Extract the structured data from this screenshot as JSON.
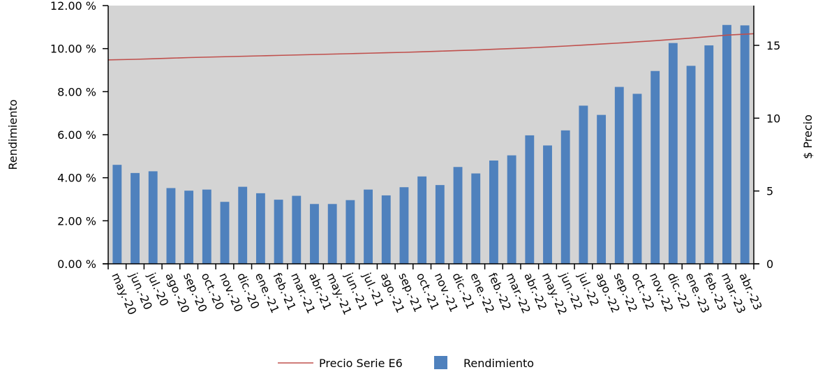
{
  "chart_data": {
    "type": "bar",
    "categories": [
      "may.-20",
      "jun.-20",
      "jul.-20",
      "ago.-20",
      "sep.-20",
      "oct.-20",
      "nov.-20",
      "dic.-20",
      "ene.-21",
      "feb.-21",
      "mar.-21",
      "abr.-21",
      "may.-21",
      "jun.-21",
      "jul.-21",
      "ago.-21",
      "sep.-21",
      "oct.-21",
      "nov.-21",
      "dic.-21",
      "ene.-22",
      "feb.-22",
      "mar.-22",
      "abr.-22",
      "may.-22",
      "jun.-22",
      "jul.-22",
      "ago.-22",
      "sep.-22",
      "oct.-22",
      "nov.-22",
      "dic.-22",
      "ene.-23",
      "feb.-23",
      "mar.-23",
      "abr.-23"
    ],
    "series": [
      {
        "name": "Rendimiento",
        "type": "bar",
        "axis": "left",
        "color": "#4f81bd",
        "values": [
          4.6,
          4.22,
          4.3,
          3.52,
          3.4,
          3.45,
          2.88,
          3.58,
          3.28,
          2.98,
          3.16,
          2.78,
          2.78,
          2.96,
          3.45,
          3.18,
          3.56,
          4.06,
          3.66,
          4.5,
          4.2,
          4.8,
          5.04,
          5.97,
          5.5,
          6.2,
          7.35,
          6.92,
          8.22,
          7.9,
          8.96,
          10.26,
          9.2,
          10.15,
          11.1,
          11.08
        ]
      },
      {
        "name": "Precio Serie E6",
        "type": "line",
        "axis": "right",
        "color": "#c0504d",
        "values": [
          14.0,
          14.04,
          14.08,
          14.12,
          14.16,
          14.19,
          14.22,
          14.25,
          14.28,
          14.31,
          14.34,
          14.37,
          14.4,
          14.43,
          14.46,
          14.49,
          14.52,
          14.56,
          14.6,
          14.64,
          14.68,
          14.73,
          14.78,
          14.83,
          14.89,
          14.95,
          15.02,
          15.09,
          15.16,
          15.24,
          15.32,
          15.41,
          15.5,
          15.6,
          15.7,
          15.8
        ]
      }
    ],
    "ylabel_left": "Rendimiento",
    "ylabel_right": "$ Precio",
    "ylim_left": [
      0,
      12
    ],
    "ylim_right": [
      0,
      17.73
    ],
    "yticks_left": [
      "0.00 %",
      "2.00 %",
      "4.00 %",
      "6.00 %",
      "8.00 %",
      "10.00 %",
      "12.00 %"
    ],
    "yticks_left_values": [
      0,
      2,
      4,
      6,
      8,
      10,
      12
    ],
    "yticks_right": [
      "0",
      "5",
      "10",
      "15"
    ],
    "yticks_right_values": [
      0,
      5,
      10,
      15
    ],
    "plot_background": "#d4d4d4",
    "grid": false,
    "legend": {
      "position": "bottom",
      "entries": [
        "Precio Serie E6",
        "Rendimiento"
      ]
    }
  }
}
